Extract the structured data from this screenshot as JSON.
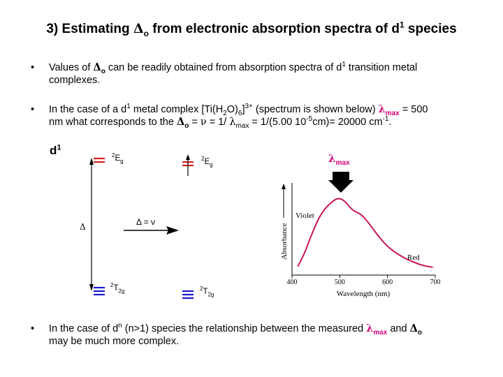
{
  "title": {
    "prefix": "3) Estimating ",
    "delta": "Δ",
    "delta_sub": "o",
    "middle": " from electronic absorption spectra of d",
    "sup": "1",
    "suffix": " species"
  },
  "bullet_symbol": "•",
  "bullet1": {
    "t1": "Values of ",
    "delta": "Δ",
    "delta_sub": "o",
    "t2": " can be readily obtained from absorption spectra of d",
    "sup": "1",
    "t3": " transition metal",
    "line2": "complexes."
  },
  "bullet2": {
    "t1": "In the case of a d",
    "sup1": "1",
    "t2": " metal complex [Ti(H",
    "sub2": "2",
    "t3": "O)",
    "sub6": "6",
    "t4": "]",
    "charge": "3+",
    "t5": " (spectrum is shown below) ",
    "lambda": "λ",
    "lambda_sub": "max",
    "t6": " = 500",
    "l2_t1": "nm what corresponds to the ",
    "delta": "Δ",
    "delta_sub": "o",
    "l2_t2": " = ",
    "nu": "ν",
    "l2_t3": " = 1/ ",
    "lambda2": "λ",
    "lambda2_sub": "max",
    "l2_t4": " = 1/(5.00 10",
    "exp": "-5",
    "l2_t5": "cm)= 20000 cm",
    "exp2": "-1",
    "l2_t6": "."
  },
  "bullet3": {
    "t1": "In the case of d",
    "supn": "n",
    "t2": " (n>1) species the relationship between the measured ",
    "lambda": "λ",
    "lambda_sub": "max",
    "t3": " and ",
    "delta": "Δ",
    "delta_sub": "o",
    "line2": "may be much more complex."
  },
  "diagram": {
    "d1_label": "d",
    "d1_sup": "1",
    "eg_sup": "2",
    "eg_main": "E",
    "eg_sub": "g",
    "t2g_sup": "2",
    "t2g_main": "T",
    "t2g_sub": "2g",
    "delta_symbol": "Δ",
    "transition_label": "Δ = ν"
  },
  "spectrum": {
    "lambda_max_symbol": "λ",
    "lambda_max_sub": "max",
    "ylabel": "Absorbance",
    "xlabel": "Wavelength (nm)",
    "violet_label": "Violet",
    "red_label": "Red",
    "xticks": [
      "400",
      "500",
      "600",
      "700"
    ]
  },
  "chart_data": {
    "type": "line",
    "xlabel": "Wavelength (nm)",
    "ylabel": "Absorbance",
    "xlim": [
      400,
      700
    ],
    "x": [
      412,
      425,
      440,
      455,
      470,
      485,
      495,
      505,
      515,
      525,
      535,
      545,
      560,
      580,
      600,
      625,
      650,
      675,
      695
    ],
    "y": [
      0.06,
      0.22,
      0.48,
      0.71,
      0.86,
      0.95,
      0.99,
      0.98,
      0.92,
      0.84,
      0.8,
      0.77,
      0.66,
      0.48,
      0.33,
      0.21,
      0.13,
      0.07,
      0.05
    ],
    "annotations": [
      "Violet",
      "Red"
    ],
    "colors": {
      "line": "#c8155a",
      "marker_text": "#d40079"
    }
  }
}
